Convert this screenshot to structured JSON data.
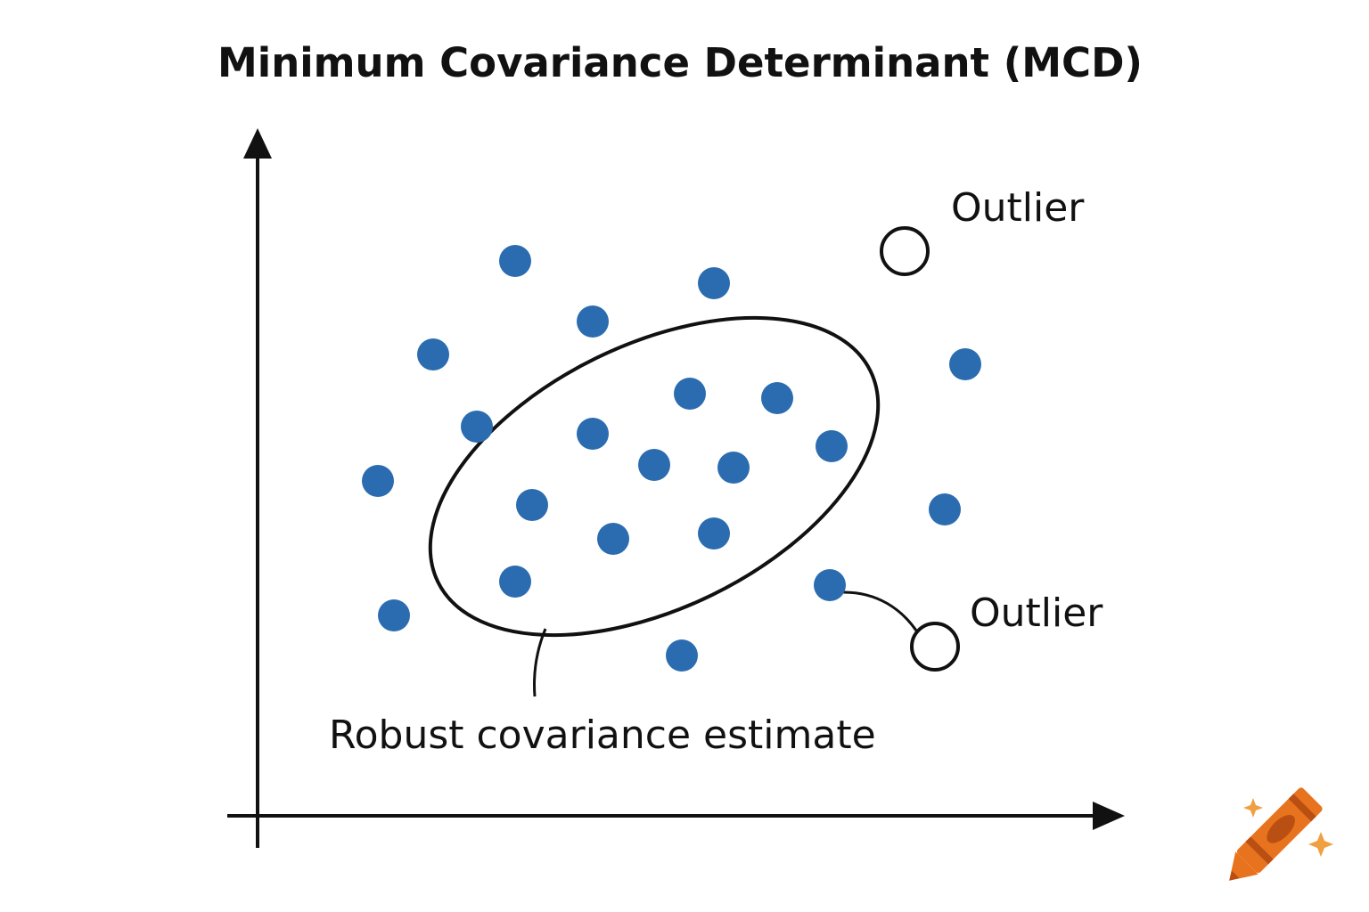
{
  "title": "Minimum Covariance Determinant (MCD)",
  "labels": {
    "outlier_top": "Outlier",
    "outlier_bottom": "Outlier",
    "ellipse_caption": "Robust covariance estimate"
  },
  "colors": {
    "point_fill": "#2b6cb0",
    "outline": "#111111",
    "axis": "#111111",
    "crayon_body": "#e8731e",
    "crayon_dark": "#b94f12",
    "sparkle": "#f0a040"
  },
  "icons": {
    "logo": "crayon-sparkle-icon"
  },
  "chart_data": {
    "type": "scatter",
    "title": "Minimum Covariance Determinant (MCD)",
    "xlabel": "",
    "ylabel": "",
    "inliers_in_ellipse": [
      [
        535,
        479
      ],
      [
        665,
        487
      ],
      [
        774,
        442
      ],
      [
        872,
        447
      ],
      [
        933,
        501
      ],
      [
        734,
        522
      ],
      [
        823,
        525
      ],
      [
        597,
        567
      ],
      [
        688,
        605
      ],
      [
        801,
        599
      ],
      [
        578,
        653
      ]
    ],
    "points_outside": [
      [
        578,
        293
      ],
      [
        801,
        318
      ],
      [
        665,
        361
      ],
      [
        486,
        398
      ],
      [
        1083,
        409
      ],
      [
        424,
        540
      ],
      [
        1060,
        572
      ],
      [
        931,
        657
      ],
      [
        442,
        691
      ],
      [
        765,
        736
      ]
    ],
    "outliers": [
      [
        1015,
        282
      ],
      [
        1049,
        726
      ]
    ],
    "ellipse": {
      "center": [
        734,
        535
      ],
      "rx": 270,
      "ry": 148,
      "angle": -26
    }
  }
}
